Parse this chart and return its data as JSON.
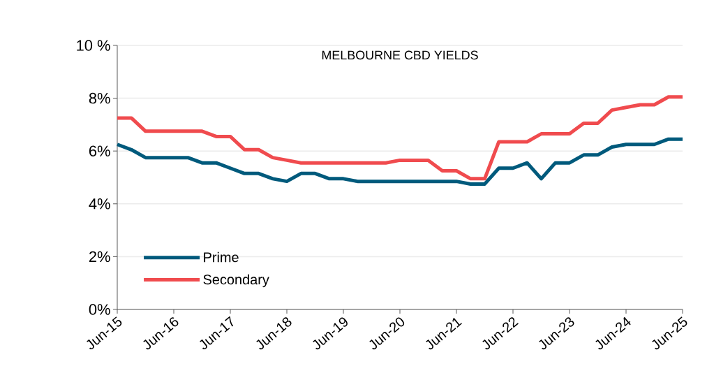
{
  "chart_data": {
    "type": "line",
    "title": "MELBOURNE CBD YIELDS",
    "x": [
      "2015-06",
      "2015-09",
      "2015-12",
      "2016-03",
      "2016-06",
      "2016-09",
      "2016-12",
      "2017-03",
      "2017-06",
      "2017-09",
      "2017-12",
      "2018-03",
      "2018-06",
      "2018-09",
      "2018-12",
      "2019-03",
      "2019-06",
      "2019-09",
      "2019-12",
      "2020-03",
      "2020-06",
      "2020-09",
      "2020-12",
      "2021-03",
      "2021-06",
      "2021-09",
      "2021-12",
      "2022-03",
      "2022-06",
      "2022-09",
      "2022-12",
      "2023-03",
      "2023-06",
      "2023-09",
      "2023-12",
      "2024-03",
      "2024-06",
      "2024-09",
      "2024-12",
      "2025-03",
      "2025-06"
    ],
    "series": [
      {
        "name": "Prime",
        "color": "#005a7c",
        "values": [
          6.25,
          6.05,
          5.75,
          5.75,
          5.75,
          5.75,
          5.55,
          5.55,
          5.35,
          5.15,
          5.15,
          4.95,
          4.85,
          5.15,
          5.15,
          4.95,
          4.95,
          4.85,
          4.85,
          4.85,
          4.85,
          4.85,
          4.85,
          4.85,
          4.85,
          4.75,
          4.75,
          5.35,
          5.35,
          5.55,
          4.95,
          5.55,
          5.55,
          5.85,
          5.85,
          6.15,
          6.25,
          6.25,
          6.25,
          6.45,
          6.45
        ]
      },
      {
        "name": "Secondary",
        "color": "#f04b4e",
        "values": [
          7.25,
          7.25,
          6.75,
          6.75,
          6.75,
          6.75,
          6.75,
          6.55,
          6.55,
          6.05,
          6.05,
          5.75,
          5.65,
          5.55,
          5.55,
          5.55,
          5.55,
          5.55,
          5.55,
          5.55,
          5.65,
          5.65,
          5.65,
          5.25,
          5.25,
          4.95,
          4.95,
          6.35,
          6.35,
          6.35,
          6.65,
          6.65,
          6.65,
          7.05,
          7.05,
          7.55,
          7.65,
          7.75,
          7.75,
          8.05,
          8.05
        ]
      }
    ],
    "xlim": [
      "2015-06",
      "2025-06"
    ],
    "xticks": [
      {
        "value": "2015-06",
        "label": "Jun-15"
      },
      {
        "value": "2016-06",
        "label": "Jun-16"
      },
      {
        "value": "2017-06",
        "label": "Jun-17"
      },
      {
        "value": "2018-06",
        "label": "Jun-18"
      },
      {
        "value": "2019-06",
        "label": "Jun-19"
      },
      {
        "value": "2020-06",
        "label": "Jun-20"
      },
      {
        "value": "2021-06",
        "label": "Jun-21"
      },
      {
        "value": "2022-06",
        "label": "Jun-22"
      },
      {
        "value": "2023-06",
        "label": "Jun-23"
      },
      {
        "value": "2024-06",
        "label": "Jun-24"
      },
      {
        "value": "2025-06",
        "label": "Jun-25"
      }
    ],
    "ylim": [
      0,
      10
    ],
    "yticks": [
      {
        "value": 0,
        "label": "0%"
      },
      {
        "value": 2,
        "label": "2%"
      },
      {
        "value": 4,
        "label": "4%"
      },
      {
        "value": 6,
        "label": "6%"
      },
      {
        "value": 8,
        "label": "8%"
      },
      {
        "value": 10,
        "label": "10 %"
      }
    ],
    "grid": "y",
    "legend": "bottom left",
    "marker": "none",
    "line_style": "solid"
  }
}
